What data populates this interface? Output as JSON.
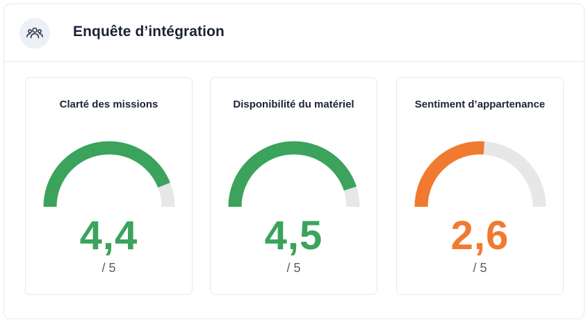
{
  "header": {
    "title": "Enquête d’intégration",
    "icon": "users-group-icon"
  },
  "colors": {
    "green": "#3ba35c",
    "orange": "#f07a30",
    "track": "#e6e7e9"
  },
  "scale_max": 5,
  "cards": [
    {
      "title": "Clarté des missions",
      "value": 4.4,
      "value_label": "4,4",
      "max_label": "/ 5",
      "status": "green"
    },
    {
      "title": "Disponibilité du matériel",
      "value": 4.5,
      "value_label": "4,5",
      "max_label": "/ 5",
      "status": "green"
    },
    {
      "title": "Sentiment d’appartenance",
      "value": 2.6,
      "value_label": "2,6",
      "max_label": "/ 5",
      "status": "orange"
    }
  ]
}
